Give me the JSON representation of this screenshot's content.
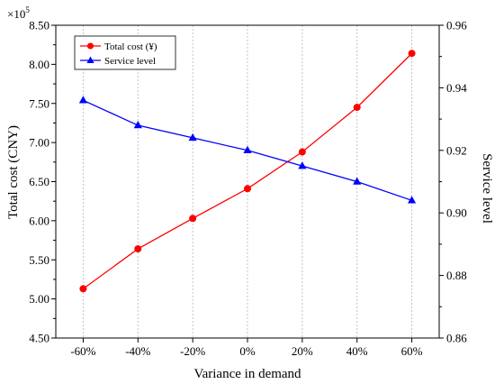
{
  "chart_data": {
    "type": "line",
    "categories": [
      "-60%",
      "-40%",
      "-20%",
      "0%",
      "20%",
      "40%",
      "60%"
    ],
    "xlabel": "Variance in demand",
    "ylabel": "Total cost (CNY)",
    "ylabel_right": "Service level",
    "multiplier_label": "×10",
    "multiplier_exponent": "5",
    "ylim": [
      4.5,
      8.5
    ],
    "ylim_right": [
      0.86,
      0.96
    ],
    "yticks": [
      "4.50",
      "5.00",
      "5.50",
      "6.00",
      "6.50",
      "7.00",
      "7.50",
      "8.00",
      "8.50"
    ],
    "yticks_right": [
      "0.86",
      "0.88",
      "0.90",
      "0.92",
      "0.94",
      "0.96"
    ],
    "grid": "vertical-dotted",
    "legend_position": "top-left",
    "series": [
      {
        "name": "Total cost (¥)",
        "axis": "left",
        "color": "#ff0000",
        "marker": "circle",
        "values": [
          5.13,
          5.64,
          6.03,
          6.41,
          6.88,
          7.45,
          8.14
        ]
      },
      {
        "name": "Service level",
        "axis": "right",
        "color": "#0000ff",
        "marker": "triangle",
        "values": [
          0.936,
          0.928,
          0.924,
          0.92,
          0.915,
          0.91,
          0.904
        ]
      }
    ]
  }
}
